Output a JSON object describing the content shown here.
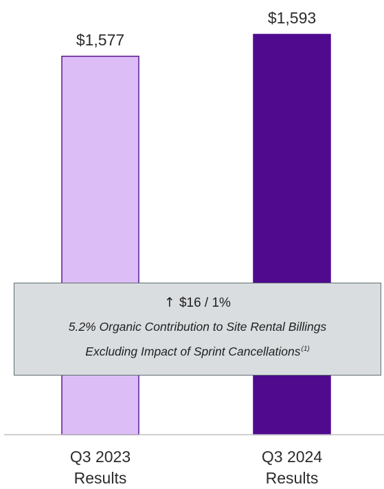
{
  "chart_data": {
    "type": "bar",
    "categories": [
      "Q3 2023\nResults",
      "Q3 2024\nResults"
    ],
    "category_lines": [
      [
        "Q3 2023",
        "Results"
      ],
      [
        "Q3 2024",
        "Results"
      ]
    ],
    "values": [
      1577,
      1593
    ],
    "value_labels": [
      "$1,577",
      "$1,593"
    ],
    "colors": [
      "#dcbdf5",
      "#4f0a8e"
    ],
    "bar_border_colors": [
      "#5b1690",
      "#4f0a8e"
    ],
    "axis_line_color": "#c0c0c0",
    "title": "",
    "xlabel": "",
    "ylabel": ""
  },
  "callout": {
    "arrow": "↑",
    "headline": "$16 / 1%",
    "line1": "5.2% Organic Contribution to Site Rental Billings",
    "line2": "Excluding Impact of Sprint Cancellations",
    "footnote": "(1)"
  }
}
